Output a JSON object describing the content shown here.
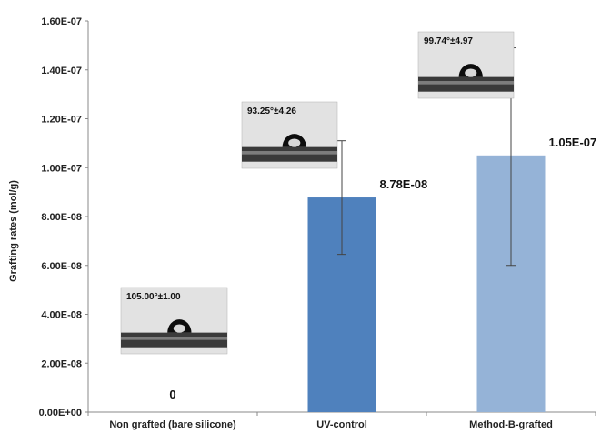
{
  "chart_data": {
    "type": "bar",
    "ylabel": "Grafting rates (mol/g)",
    "ylim": [
      0,
      1.6e-07
    ],
    "y_ticks": [
      "0.00E+00",
      "2.00E-08",
      "4.00E-08",
      "6.00E-08",
      "8.00E-08",
      "1.00E-07",
      "1.20E-07",
      "1.40E-07",
      "1.60E-07"
    ],
    "y_tick_values": [
      0,
      2e-08,
      4e-08,
      6e-08,
      8e-08,
      1e-07,
      1.2e-07,
      1.4e-07,
      1.6e-07
    ],
    "categories": [
      "Non grafted (bare silicone)",
      "UV-control",
      "Method-B-grafted"
    ],
    "values": [
      0,
      8.78e-08,
      1.05e-07
    ],
    "error_low": [
      null,
      6.45e-08,
      6e-08
    ],
    "error_high": [
      null,
      1.11e-07,
      1.49e-07
    ],
    "data_labels": [
      "0",
      "8.78E-08",
      "1.05E-07"
    ],
    "bar_colors": [
      "#4f81bd",
      "#4f81bd",
      "#95b3d7"
    ],
    "contact_angle_labels": [
      "105.00°±1.00",
      "93.25°±4.26",
      "99.74°±4.97"
    ],
    "grid": false,
    "legend": "none"
  }
}
